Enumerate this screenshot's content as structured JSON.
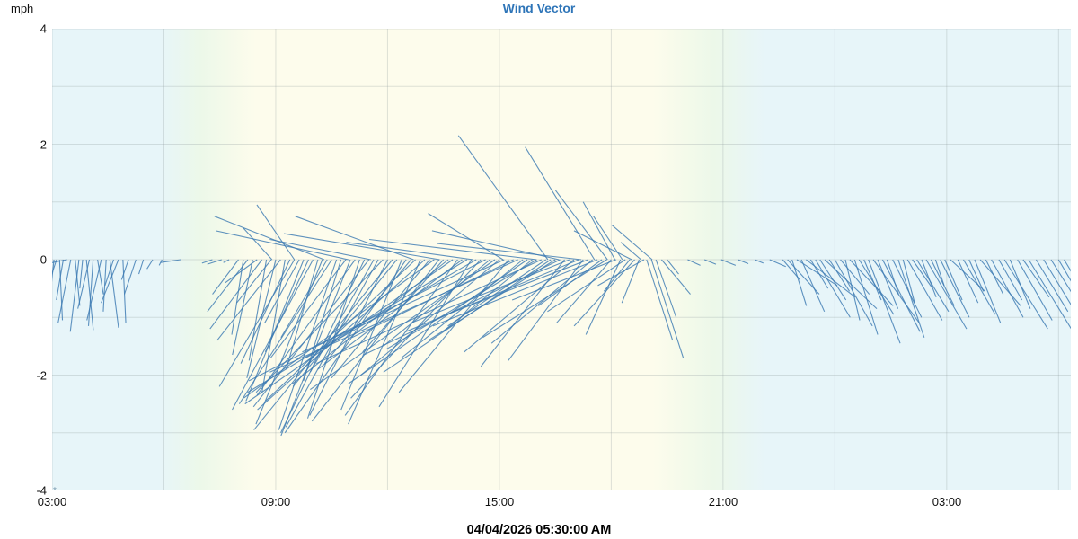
{
  "title": "Wind Vector",
  "title_color": "#2e75b8",
  "axes": {
    "y_unit": "mph",
    "y_ticks": [
      "4",
      "2",
      "0",
      "-2",
      "-4"
    ],
    "x_ticks": [
      "03:00",
      "09:00",
      "15:00",
      "21:00",
      "03:00"
    ]
  },
  "footer": {
    "footnote_marker": "*",
    "timestamp": "04/04/2026 05:30:00 AM"
  },
  "chart_data": {
    "type": "scatter",
    "subtype": "wind-vector",
    "title": "Wind Vector",
    "ylabel": "mph",
    "y_range": [
      -4,
      4
    ],
    "y_tick_step": 1,
    "x_hours_range": [
      0,
      27.33
    ],
    "x_tick_step_hours": 3,
    "x_label_step_hours": 6,
    "x_start_label": "03:00",
    "grid": true,
    "grid_color": "rgba(140,150,155,0.28)",
    "vector_color": "#3c7ab2",
    "vector_opacity": 0.82,
    "background_gradient_stops": [
      [
        "0%",
        "#e7f5f9"
      ],
      [
        "10.5%",
        "#e7f5f9"
      ],
      [
        "14.5%",
        "#ecf8e9"
      ],
      [
        "20%",
        "#fdfcec"
      ],
      [
        "59%",
        "#fdfcec"
      ],
      [
        "65%",
        "#ecf8e9"
      ],
      [
        "70%",
        "#e7f5f9"
      ],
      [
        "100%",
        "#e7f5f9"
      ]
    ],
    "vector_note": "each vector = [hours after 03:00, u mph, v mph]; drawn from (t,0) toward (t+u, v)",
    "vectors": [
      [
        0.05,
        -0.1,
        -0.95
      ],
      [
        0.12,
        -0.18,
        -0.55
      ],
      [
        0.2,
        0.05,
        -1.05
      ],
      [
        0.3,
        -0.12,
        -0.7
      ],
      [
        0.4,
        -0.3,
        -0.06
      ],
      [
        0.5,
        -0.22,
        -1.1
      ],
      [
        0.62,
        0.08,
        -0.8
      ],
      [
        0.72,
        -0.15,
        -1.25
      ],
      [
        0.82,
        -0.05,
        -0.5
      ],
      [
        0.92,
        0.12,
        -1.22
      ],
      [
        1.0,
        -0.2,
        -0.85
      ],
      [
        1.1,
        -0.08,
        -1.15
      ],
      [
        1.22,
        0.1,
        -0.6
      ],
      [
        1.32,
        -0.25,
        -1.05
      ],
      [
        1.45,
        -0.05,
        -0.9
      ],
      [
        1.55,
        0.15,
        -1.18
      ],
      [
        1.65,
        -0.15,
        -0.45
      ],
      [
        1.78,
        -0.3,
        -0.75
      ],
      [
        1.9,
        0.05,
        -1.1
      ],
      [
        2.05,
        -0.12,
        -0.35
      ],
      [
        2.25,
        -0.2,
        -0.6
      ],
      [
        2.45,
        -0.08,
        -0.25
      ],
      [
        2.7,
        -0.1,
        -0.16
      ],
      [
        2.95,
        -0.05,
        -0.1
      ],
      [
        3.45,
        -0.35,
        -0.05
      ],
      [
        4.3,
        -0.18,
        -0.06
      ],
      [
        4.55,
        -0.25,
        -0.08
      ],
      [
        4.75,
        -0.1,
        -0.05
      ],
      [
        5.0,
        -0.45,
        -0.6
      ],
      [
        5.13,
        -0.2,
        -1.3
      ],
      [
        5.25,
        -0.7,
        -0.9
      ],
      [
        5.38,
        -0.35,
        -1.65
      ],
      [
        5.5,
        -0.55,
        -0.4
      ],
      [
        5.63,
        -0.9,
        -1.2
      ],
      [
        5.75,
        -0.3,
        -1.75
      ],
      [
        5.88,
        -0.6,
        -0.75
      ],
      [
        6.0,
        -0.5,
        -2.05
      ],
      [
        6.13,
        -1.1,
        -1.4
      ],
      [
        6.25,
        -0.4,
        -2.3
      ],
      [
        6.38,
        -0.85,
        -1.8
      ],
      [
        6.5,
        -1.3,
        -2.2
      ],
      [
        6.63,
        -0.6,
        -1.1
      ],
      [
        6.75,
        -1.0,
        -2.45
      ],
      [
        6.88,
        -0.75,
        -1.6
      ],
      [
        7.0,
        -1.4,
        -2.6
      ],
      [
        7.13,
        -0.55,
        -1.9
      ],
      [
        7.25,
        -1.15,
        -2.85
      ],
      [
        7.38,
        -0.8,
        -1.35
      ],
      [
        7.5,
        -1.6,
        -2.5
      ],
      [
        7.63,
        -1.0,
        -2.95
      ],
      [
        7.75,
        -0.65,
        -2.1
      ],
      [
        7.88,
        -1.3,
        -1.7
      ],
      [
        8.0,
        -1.2,
        -3.05
      ],
      [
        8.13,
        -1.7,
        -2.35
      ],
      [
        8.25,
        -0.9,
        -2.75
      ],
      [
        8.38,
        -1.45,
        -3.0
      ],
      [
        8.5,
        -2.0,
        -2.55
      ],
      [
        8.63,
        -1.1,
        -1.95
      ],
      [
        8.75,
        -1.6,
        -2.9
      ],
      [
        8.88,
        -2.2,
        -2.3
      ],
      [
        9.0,
        -1.35,
        -2.7
      ],
      [
        9.13,
        -2.4,
        -2.95
      ],
      [
        9.25,
        -1.8,
        -2.2
      ],
      [
        9.38,
        -1.05,
        -2.6
      ],
      [
        9.5,
        -2.1,
        -3.0
      ],
      [
        9.63,
        -1.5,
        -1.8
      ],
      [
        9.75,
        -2.6,
        -2.45
      ],
      [
        9.88,
        -1.25,
        -2.85
      ],
      [
        10.0,
        -2.9,
        -2.6
      ],
      [
        10.13,
        -1.7,
        -2.05
      ],
      [
        10.25,
        -3.3,
        -2.4
      ],
      [
        10.38,
        -2.2,
        -2.8
      ],
      [
        10.5,
        -1.4,
        -1.6
      ],
      [
        10.63,
        -2.7,
        -2.15
      ],
      [
        10.75,
        -3.6,
        -2.5
      ],
      [
        10.88,
        -1.95,
        -2.7
      ],
      [
        11.0,
        -2.5,
        -1.9
      ],
      [
        11.13,
        -3.8,
        -2.3
      ],
      [
        11.25,
        -1.6,
        -2.55
      ],
      [
        11.38,
        -2.95,
        -1.7
      ],
      [
        11.5,
        -2.25,
        -2.4
      ],
      [
        11.63,
        -4.1,
        -2.1
      ],
      [
        11.75,
        -1.85,
        -1.5
      ],
      [
        11.88,
        -3.2,
        -2.25
      ],
      [
        12.0,
        -2.4,
        -2.0
      ],
      [
        12.13,
        -3.5,
        -1.6
      ],
      [
        12.25,
        -1.9,
        -2.3
      ],
      [
        12.38,
        -2.8,
        -1.35
      ],
      [
        12.5,
        -4.3,
        -1.95
      ],
      [
        12.63,
        -2.1,
        -1.7
      ],
      [
        12.75,
        -3.1,
        -2.15
      ],
      [
        12.88,
        -1.55,
        -1.25
      ],
      [
        13.0,
        -2.6,
        -1.55
      ],
      [
        13.13,
        -3.9,
        -1.8
      ],
      [
        13.25,
        -1.7,
        -1.15
      ],
      [
        13.38,
        -2.9,
        -1.95
      ],
      [
        13.5,
        -2.2,
        -1.4
      ],
      [
        13.63,
        -3.4,
        -1.65
      ],
      [
        13.75,
        -1.45,
        -1.85
      ],
      [
        13.88,
        -2.75,
        -1.1
      ],
      [
        14.0,
        -1.9,
        -1.6
      ],
      [
        14.13,
        -3.0,
        -1.25
      ],
      [
        14.25,
        -1.3,
        -1.75
      ],
      [
        14.38,
        -2.45,
        -0.95
      ],
      [
        14.5,
        -1.75,
        -1.45
      ],
      [
        14.63,
        -2.85,
        -1.15
      ],
      [
        14.75,
        -1.1,
        -0.8
      ],
      [
        14.88,
        -2.15,
        -1.35
      ],
      [
        15.0,
        -0.95,
        -1.1
      ],
      [
        15.13,
        -1.8,
        -0.7
      ],
      [
        15.25,
        -0.6,
        -1.3
      ],
      [
        15.38,
        -1.35,
        -0.9
      ],
      [
        15.5,
        -0.45,
        -0.55
      ],
      [
        15.63,
        -1.05,
        -1.15
      ],
      [
        15.75,
        -0.3,
        -0.75
      ],
      [
        15.88,
        -0.8,
        -0.45
      ],
      [
        15.95,
        0.45,
        -1.4
      ],
      [
        16.08,
        0.55,
        -1.7
      ],
      [
        16.2,
        0.35,
        -1.0
      ],
      [
        16.35,
        0.5,
        -0.6
      ],
      [
        16.5,
        0.2,
        -0.25
      ],
      [
        5.9,
        -0.5,
        0.55
      ],
      [
        6.5,
        -0.65,
        0.95
      ],
      [
        7.3,
        -1.9,
        0.75
      ],
      [
        7.95,
        -2.3,
        0.5
      ],
      [
        8.55,
        -1.75,
        0.35
      ],
      [
        9.7,
        -2.05,
        0.75
      ],
      [
        10.4,
        -2.7,
        0.45
      ],
      [
        11.3,
        -2.2,
        0.3
      ],
      [
        12.1,
        -1.3,
        0.8
      ],
      [
        13.0,
        -2.9,
        0.35
      ],
      [
        13.3,
        -1.55,
        2.15
      ],
      [
        13.6,
        -2.2,
        0.5
      ],
      [
        14.2,
        -2.5,
        0.28
      ],
      [
        14.55,
        -1.2,
        1.95
      ],
      [
        14.9,
        -0.9,
        1.2
      ],
      [
        15.1,
        -0.55,
        1.0
      ],
      [
        15.3,
        -0.5,
        0.75
      ],
      [
        15.55,
        -1.0,
        0.5
      ],
      [
        15.8,
        -0.35,
        0.3
      ],
      [
        16.1,
        -0.7,
        0.6
      ],
      [
        17.05,
        0.22,
        -0.1
      ],
      [
        17.5,
        0.2,
        -0.08
      ],
      [
        17.95,
        0.25,
        -0.1
      ],
      [
        18.4,
        0.18,
        -0.07
      ],
      [
        18.85,
        0.15,
        -0.06
      ],
      [
        19.25,
        0.28,
        -0.12
      ],
      [
        19.6,
        0.3,
        -0.35
      ],
      [
        19.73,
        0.55,
        -0.6
      ],
      [
        19.85,
        0.25,
        -0.8
      ],
      [
        19.98,
        0.7,
        -0.45
      ],
      [
        20.1,
        0.4,
        -0.9
      ],
      [
        20.23,
        0.85,
        -0.65
      ],
      [
        20.35,
        0.3,
        -0.5
      ],
      [
        20.48,
        0.6,
        -1.0
      ],
      [
        20.6,
        0.45,
        -0.7
      ],
      [
        20.73,
        0.9,
        -0.85
      ],
      [
        20.85,
        0.35,
        -0.55
      ],
      [
        21.0,
        0.65,
        -1.15
      ],
      [
        21.15,
        0.5,
        -0.6
      ],
      [
        21.28,
        0.25,
        -1.05
      ],
      [
        21.4,
        0.75,
        -0.8
      ],
      [
        21.53,
        0.4,
        -1.3
      ],
      [
        21.65,
        0.6,
        -0.95
      ],
      [
        21.78,
        0.3,
        -0.7
      ],
      [
        21.9,
        0.55,
        -1.45
      ],
      [
        22.03,
        0.8,
        -1.1
      ],
      [
        22.15,
        0.35,
        -0.85
      ],
      [
        22.28,
        0.65,
        -1.25
      ],
      [
        22.4,
        0.2,
        -0.6
      ],
      [
        22.55,
        0.5,
        -1.0
      ],
      [
        22.7,
        0.45,
        -1.35
      ],
      [
        22.83,
        0.2,
        -0.75
      ],
      [
        22.95,
        0.6,
        -1.05
      ],
      [
        23.08,
        0.35,
        -0.5
      ],
      [
        23.2,
        0.55,
        -0.9
      ],
      [
        23.33,
        0.25,
        -0.65
      ],
      [
        23.45,
        0.7,
        -1.2
      ],
      [
        23.58,
        0.4,
        -0.8
      ],
      [
        23.7,
        0.15,
        -0.45
      ],
      [
        23.83,
        0.5,
        -1.0
      ],
      [
        23.95,
        0.3,
        -0.7
      ],
      [
        24.1,
        0.6,
        -0.55
      ],
      [
        24.3,
        0.35,
        -0.75
      ],
      [
        24.45,
        0.55,
        -0.95
      ],
      [
        24.6,
        0.25,
        -0.55
      ],
      [
        24.75,
        0.45,
        -1.1
      ],
      [
        24.9,
        0.7,
        -0.8
      ],
      [
        25.05,
        0.3,
        -0.6
      ],
      [
        25.2,
        0.55,
        -1.0
      ],
      [
        25.4,
        0.4,
        -0.7
      ],
      [
        25.55,
        0.75,
        -1.2
      ],
      [
        25.7,
        0.35,
        -0.85
      ],
      [
        25.9,
        0.6,
        -1.05
      ],
      [
        26.05,
        0.45,
        -0.65
      ],
      [
        26.2,
        0.8,
        -1.3
      ],
      [
        26.4,
        0.55,
        -0.9
      ],
      [
        26.6,
        0.7,
        -1.15
      ],
      [
        26.8,
        0.5,
        -0.8
      ],
      [
        27.0,
        0.85,
        -1.45
      ],
      [
        27.15,
        0.6,
        -1.0
      ]
    ]
  }
}
